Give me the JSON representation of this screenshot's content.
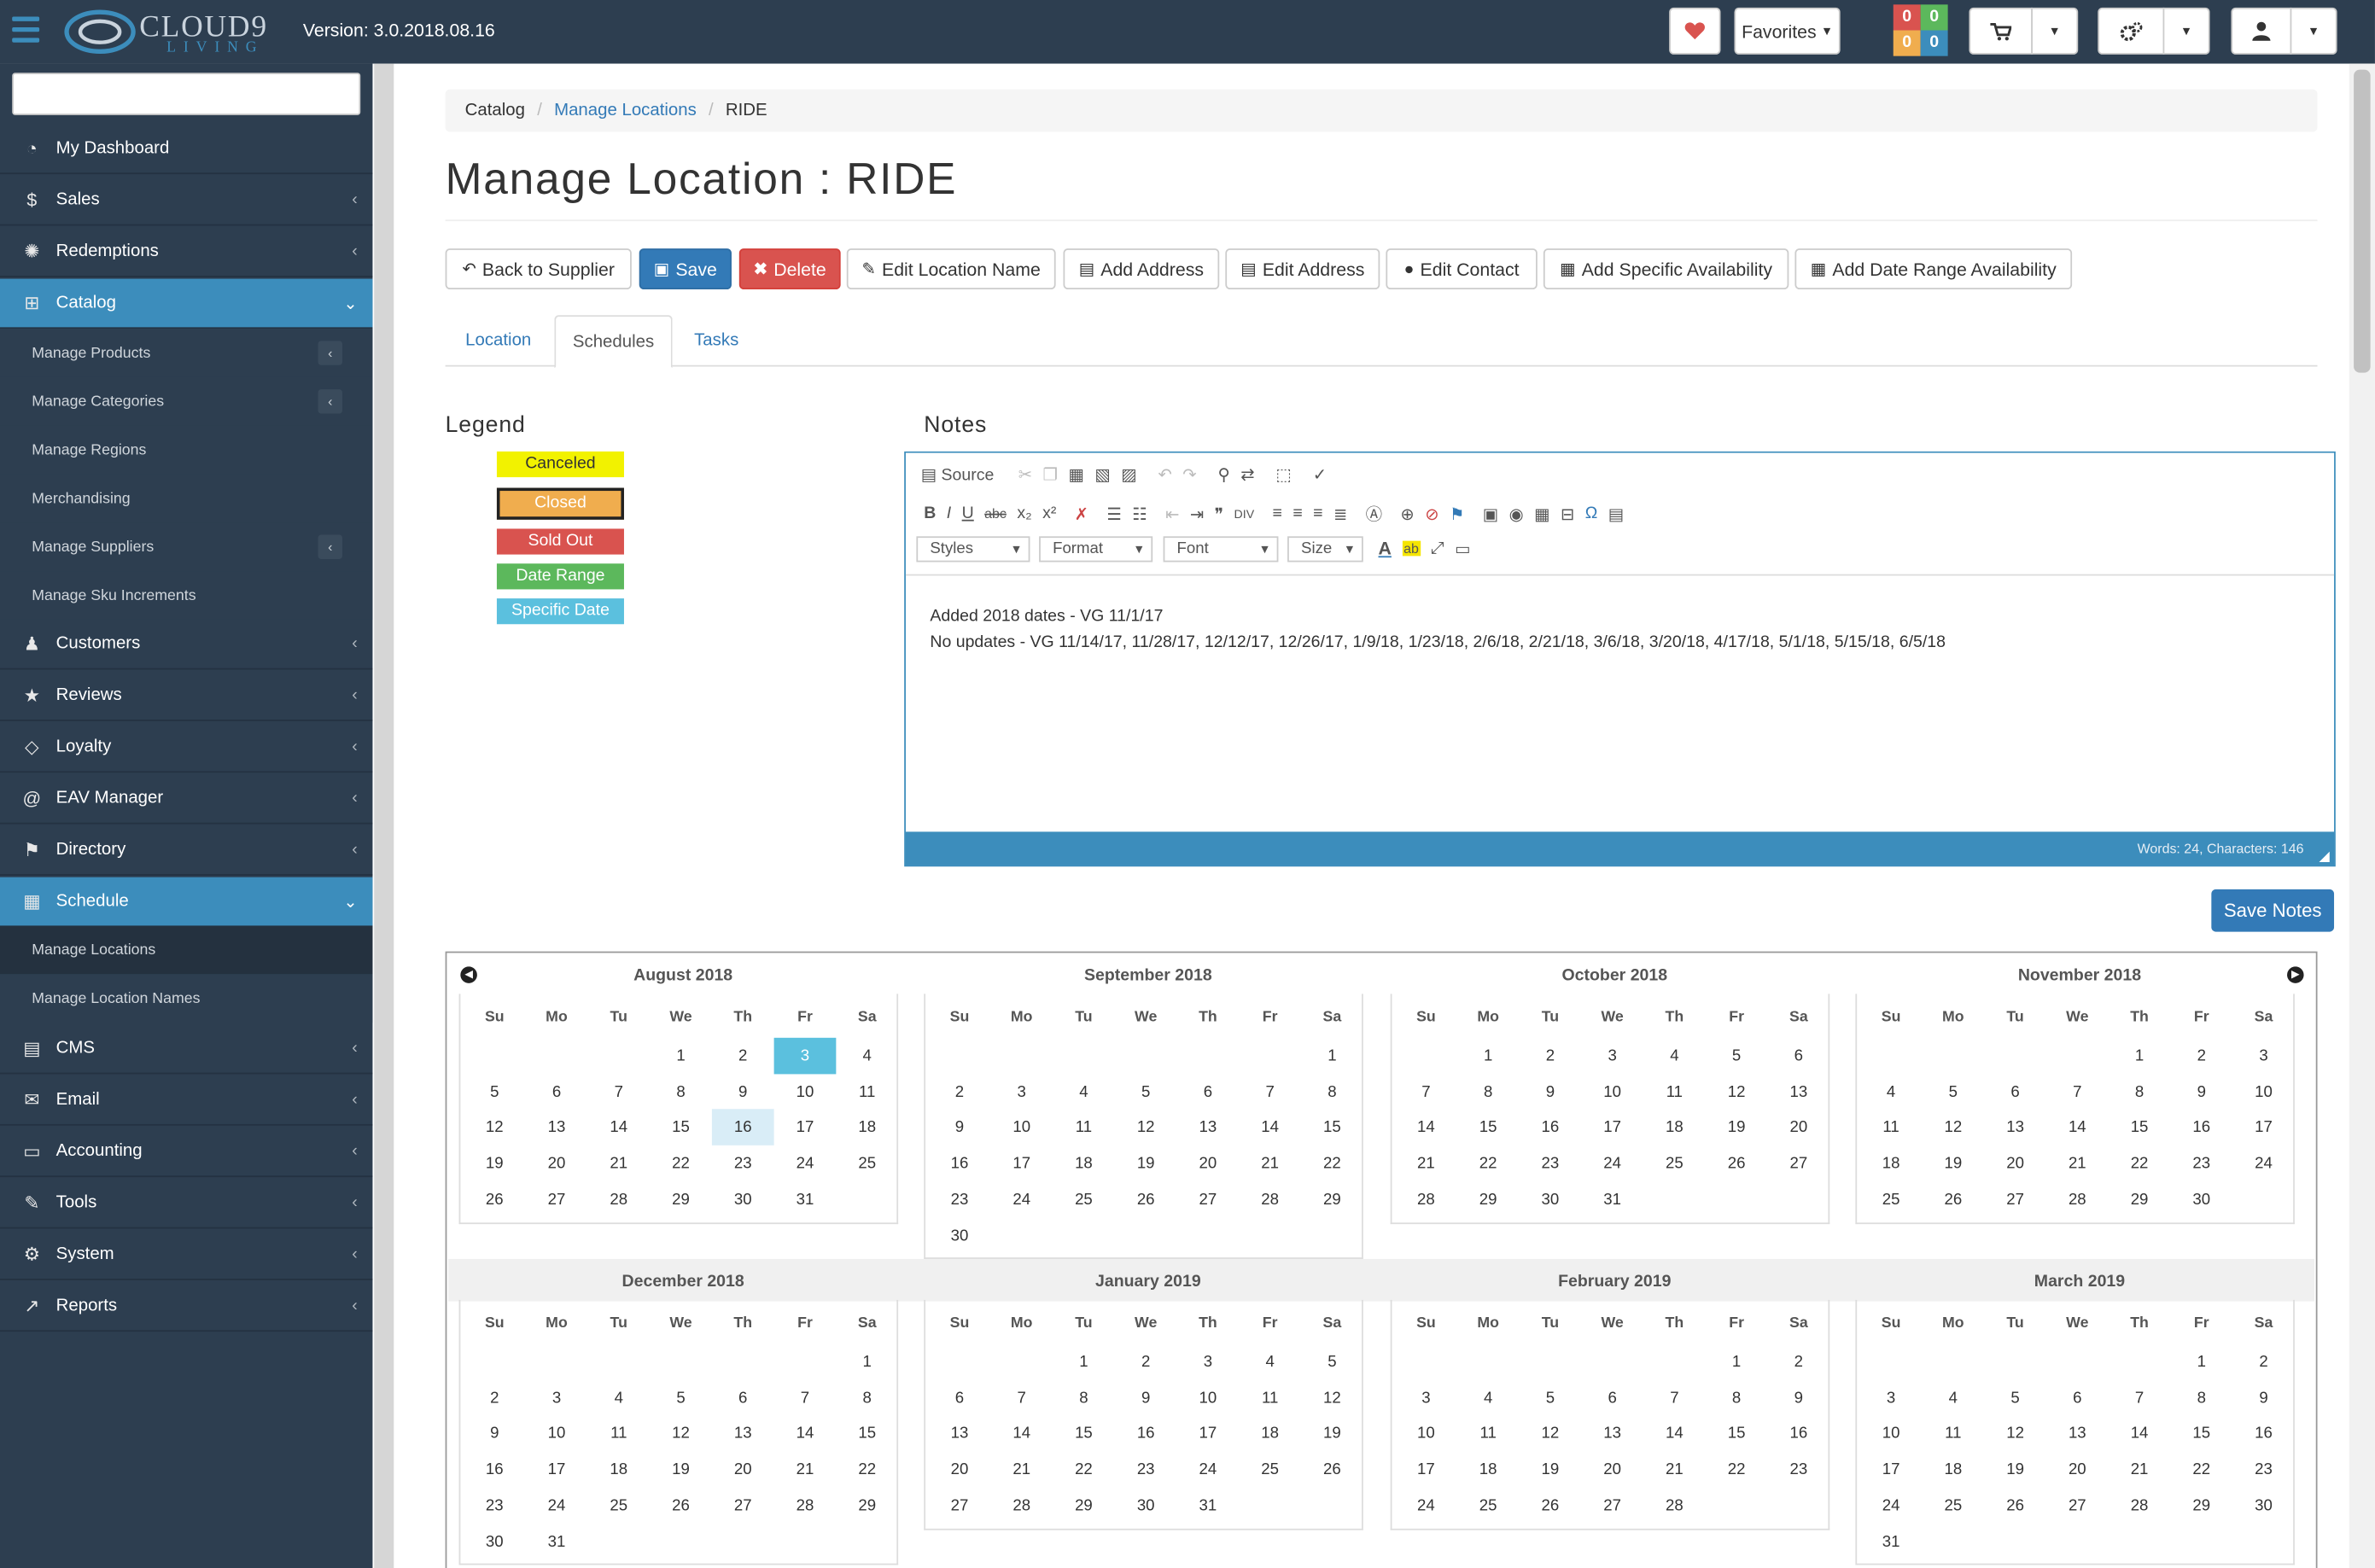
{
  "app": {
    "logo_text": "CLOUD9",
    "logo_sub": "LIVING",
    "version": "Version: 3.0.2018.08.16"
  },
  "topbar": {
    "favorites_label": "Favorites",
    "counters": [
      "0",
      "0",
      "0",
      "0"
    ],
    "colors": {
      "topbar": "#2d3e50",
      "accent": "#3c8dbc"
    }
  },
  "sidebar": {
    "items": [
      {
        "label": "My Dashboard",
        "icon": "dashboard-icon"
      },
      {
        "label": "Sales",
        "icon": "dollar-icon"
      },
      {
        "label": "Redemptions",
        "icon": "redemptions-icon"
      },
      {
        "label": "Catalog",
        "icon": "sitemap-icon"
      },
      {
        "label": "Customers",
        "icon": "users-icon"
      },
      {
        "label": "Reviews",
        "icon": "star-icon"
      },
      {
        "label": "Loyalty",
        "icon": "diamond-icon"
      },
      {
        "label": "EAV Manager",
        "icon": "at-icon"
      },
      {
        "label": "Directory",
        "icon": "flag-icon"
      },
      {
        "label": "Schedule",
        "icon": "calendar-icon"
      },
      {
        "label": "CMS",
        "icon": "file-icon"
      },
      {
        "label": "Email",
        "icon": "envelope-icon"
      },
      {
        "label": "Accounting",
        "icon": "money-icon"
      },
      {
        "label": "Tools",
        "icon": "wrench-icon"
      },
      {
        "label": "System",
        "icon": "cogs-icon"
      },
      {
        "label": "Reports",
        "icon": "chart-icon"
      }
    ],
    "catalog_sub": [
      "Manage Products",
      "Manage Categories",
      "Manage Regions",
      "Merchandising",
      "Manage Suppliers",
      "Manage Sku Increments"
    ],
    "schedule_sub": [
      "Manage Locations",
      "Manage Location Names"
    ]
  },
  "breadcrumb": {
    "items": [
      "Catalog",
      "Manage Locations",
      "RIDE"
    ]
  },
  "page": {
    "title": "Manage Location : RIDE"
  },
  "actions": {
    "back": "Back to Supplier",
    "save": "Save",
    "delete": "Delete",
    "edit_name": "Edit Location Name",
    "add_address": "Add Address",
    "edit_address": "Edit Address",
    "edit_contact": "Edit Contact",
    "add_specific": "Add Specific Availability",
    "add_range": "Add Date Range Availability"
  },
  "tabs": [
    "Location",
    "Schedules",
    "Tasks"
  ],
  "legend": {
    "title": "Legend",
    "items": [
      {
        "label": "Canceled",
        "bg": "#f2f200",
        "color": "#333"
      },
      {
        "label": "Closed",
        "bg": "#f0ad4e",
        "color": "#fff"
      },
      {
        "label": "Sold Out",
        "bg": "#d9534f",
        "color": "#fff"
      },
      {
        "label": "Date Range",
        "bg": "#5cb85c",
        "color": "#fff"
      },
      {
        "label": "Specific Date",
        "bg": "#5bc0de",
        "color": "#fff"
      }
    ]
  },
  "notes": {
    "title": "Notes",
    "toolbar": {
      "source": "Source",
      "styles": "Styles",
      "format": "Format",
      "font": "Font",
      "size": "Size"
    },
    "line1": "Added 2018 dates - VG  11/1/17",
    "line2": "No updates - VG 11/14/17, 11/28/17, 12/12/17, 12/26/17, 1/9/18, 1/23/18, 2/6/18, 2/21/18, 3/6/18, 3/20/18, 4/17/18, 5/1/18, 5/15/18, 6/5/18",
    "status": "Words: 24, Characters: 146",
    "save_label": "Save Notes"
  },
  "calendar": {
    "dow": [
      "Su",
      "Mo",
      "Tu",
      "We",
      "Th",
      "Fr",
      "Sa"
    ],
    "months": [
      {
        "name": "August 2018",
        "start": 3,
        "days": 31,
        "hl_blue": [
          3
        ],
        "hl_light": [
          16
        ]
      },
      {
        "name": "September 2018",
        "start": 6,
        "days": 30,
        "hl_blue": [],
        "hl_light": []
      },
      {
        "name": "October 2018",
        "start": 1,
        "days": 31,
        "hl_blue": [],
        "hl_light": []
      },
      {
        "name": "November 2018",
        "start": 4,
        "days": 30,
        "hl_blue": [],
        "hl_light": []
      },
      {
        "name": "December 2018",
        "start": 6,
        "days": 31,
        "hl_blue": [],
        "hl_light": []
      },
      {
        "name": "January 2019",
        "start": 2,
        "days": 31,
        "hl_blue": [],
        "hl_light": []
      },
      {
        "name": "February 2019",
        "start": 5,
        "days": 28,
        "hl_blue": [],
        "hl_light": []
      },
      {
        "name": "March 2019",
        "start": 5,
        "days": 31,
        "hl_blue": [],
        "hl_light": []
      }
    ]
  }
}
